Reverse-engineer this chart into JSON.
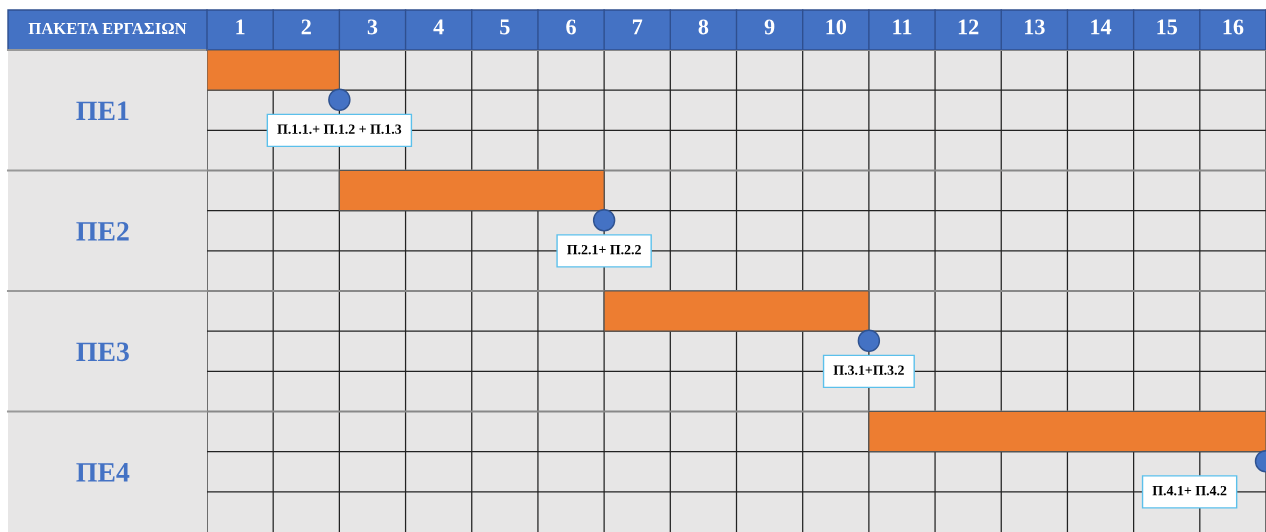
{
  "chart_data": {
    "type": "bar",
    "orientation": "horizontal",
    "ylabel": "ΠΑΚΕΤΑ ΕΡΓΑΣΙΩΝ",
    "categories": [
      "ΠΕ1",
      "ΠΕ2",
      "ΠΕ3",
      "ΠΕ4"
    ],
    "series": [
      {
        "color": "#ed7d31",
        "base": [
          0,
          2,
          6,
          10
        ],
        "values": [
          2,
          4,
          4,
          6
        ]
      },
      {
        "type": "scatter",
        "color": "#4472c4",
        "marker": "circle",
        "values": [
          2,
          6,
          10,
          16
        ]
      }
    ],
    "xlim": [
      0,
      16
    ],
    "xticks": [
      {
        "value": 0.5,
        "label": "1"
      },
      {
        "value": 1.5,
        "label": "2"
      },
      {
        "value": 2.5,
        "label": "3"
      },
      {
        "value": 3.5,
        "label": "4"
      },
      {
        "value": 4.5,
        "label": "5"
      },
      {
        "value": 5.5,
        "label": "6"
      },
      {
        "value": 6.5,
        "label": "7"
      },
      {
        "value": 7.5,
        "label": "8"
      },
      {
        "value": 8.5,
        "label": "9"
      },
      {
        "value": 9.5,
        "label": "10"
      },
      {
        "value": 10.5,
        "label": "11"
      },
      {
        "value": 11.5,
        "label": "12"
      },
      {
        "value": 12.5,
        "label": "13"
      },
      {
        "value": 13.5,
        "label": "14"
      },
      {
        "value": 14.5,
        "label": "15"
      },
      {
        "value": 15.5,
        "label": "16"
      }
    ],
    "grid": true,
    "annotations": [
      "Π.1.1.+ Π.1.2 + Π.1.3",
      "Π.2.1+ Π.2.2",
      "Π.3.1+Π.3.2",
      "Π.4.1+ Π.4.2"
    ]
  }
}
